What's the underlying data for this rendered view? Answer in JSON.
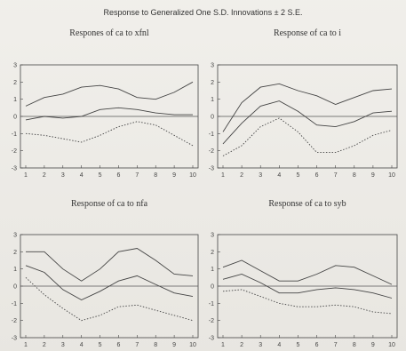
{
  "title": "Response to Generalized One S.D. Innovations ± 2 S.E.",
  "chart_data": [
    {
      "type": "line",
      "title": "Respones of ca to xfnl",
      "x": [
        1,
        2,
        3,
        4,
        5,
        6,
        7,
        8,
        9,
        10
      ],
      "xticks": [
        "1",
        "2",
        "3",
        "4",
        "5",
        "6",
        "7",
        "8",
        "9",
        "10"
      ],
      "ylim": [
        -3,
        3
      ],
      "yticks": [
        "-3",
        "-2",
        "-1",
        "0",
        "1",
        "2",
        "3"
      ],
      "zero_line": true,
      "series": [
        {
          "values": [
            0.6,
            1.1,
            1.3,
            1.7,
            1.8,
            1.6,
            1.1,
            1.0,
            1.4,
            2.0
          ],
          "style": "solid"
        },
        {
          "values": [
            -0.2,
            0.0,
            -0.1,
            0.0,
            0.4,
            0.5,
            0.4,
            0.2,
            0.1,
            0.1
          ],
          "style": "solid"
        },
        {
          "values": [
            -1.0,
            -1.1,
            -1.3,
            -1.5,
            -1.1,
            -0.6,
            -0.3,
            -0.5,
            -1.1,
            -1.7
          ],
          "style": "dotted"
        }
      ]
    },
    {
      "type": "line",
      "title": "Response of ca to i",
      "x": [
        1,
        2,
        3,
        4,
        5,
        6,
        7,
        8,
        9,
        10
      ],
      "xticks": [
        "1",
        "2",
        "3",
        "4",
        "5",
        "6",
        "7",
        "8",
        "9",
        "10"
      ],
      "ylim": [
        -3,
        3
      ],
      "yticks": [
        "-3",
        "-2",
        "-1",
        "0",
        "1",
        "2",
        "3"
      ],
      "zero_line": true,
      "series": [
        {
          "values": [
            -0.9,
            0.8,
            1.7,
            1.9,
            1.5,
            1.2,
            0.7,
            1.1,
            1.5,
            1.6
          ],
          "style": "solid"
        },
        {
          "values": [
            -1.6,
            -0.4,
            0.6,
            0.9,
            0.3,
            -0.5,
            -0.6,
            -0.3,
            0.2,
            0.3
          ],
          "style": "solid"
        },
        {
          "values": [
            -2.3,
            -1.7,
            -0.6,
            -0.1,
            -0.9,
            -2.1,
            -2.1,
            -1.7,
            -1.1,
            -0.8
          ],
          "style": "dotted"
        }
      ]
    },
    {
      "type": "line",
      "title": "Response of ca to nfa",
      "x": [
        1,
        2,
        3,
        4,
        5,
        6,
        7,
        8,
        9,
        10
      ],
      "xticks": [
        "1",
        "2",
        "3",
        "4",
        "5",
        "6",
        "7",
        "8",
        "9",
        "10"
      ],
      "ylim": [
        -3,
        3
      ],
      "yticks": [
        "-3",
        "-2",
        "-1",
        "0",
        "1",
        "2",
        "3"
      ],
      "zero_line": true,
      "series": [
        {
          "values": [
            2.0,
            2.0,
            1.0,
            0.3,
            1.0,
            2.0,
            2.2,
            1.5,
            0.7,
            0.6
          ],
          "style": "solid"
        },
        {
          "values": [
            1.2,
            0.8,
            -0.2,
            -0.8,
            -0.3,
            0.3,
            0.6,
            0.1,
            -0.4,
            -0.6
          ],
          "style": "solid"
        },
        {
          "values": [
            0.5,
            -0.5,
            -1.3,
            -2.0,
            -1.7,
            -1.2,
            -1.1,
            -1.4,
            -1.7,
            -2.0
          ],
          "style": "dotted"
        }
      ]
    },
    {
      "type": "line",
      "title": "Response of ca to syb",
      "x": [
        1,
        2,
        3,
        4,
        5,
        6,
        7,
        8,
        9,
        10
      ],
      "xticks": [
        "1",
        "2",
        "3",
        "4",
        "5",
        "6",
        "7",
        "8",
        "9",
        "10"
      ],
      "ylim": [
        -3,
        3
      ],
      "yticks": [
        "-3",
        "-2",
        "-1",
        "0",
        "1",
        "2",
        "3"
      ],
      "zero_line": true,
      "series": [
        {
          "values": [
            1.1,
            1.5,
            0.9,
            0.3,
            0.3,
            0.7,
            1.2,
            1.1,
            0.6,
            0.1
          ],
          "style": "solid"
        },
        {
          "values": [
            0.4,
            0.7,
            0.2,
            -0.4,
            -0.4,
            -0.2,
            -0.1,
            -0.2,
            -0.4,
            -0.7
          ],
          "style": "solid"
        },
        {
          "values": [
            -0.3,
            -0.2,
            -0.6,
            -1.0,
            -1.2,
            -1.2,
            -1.1,
            -1.2,
            -1.5,
            -1.6
          ],
          "style": "dotted"
        }
      ]
    }
  ]
}
